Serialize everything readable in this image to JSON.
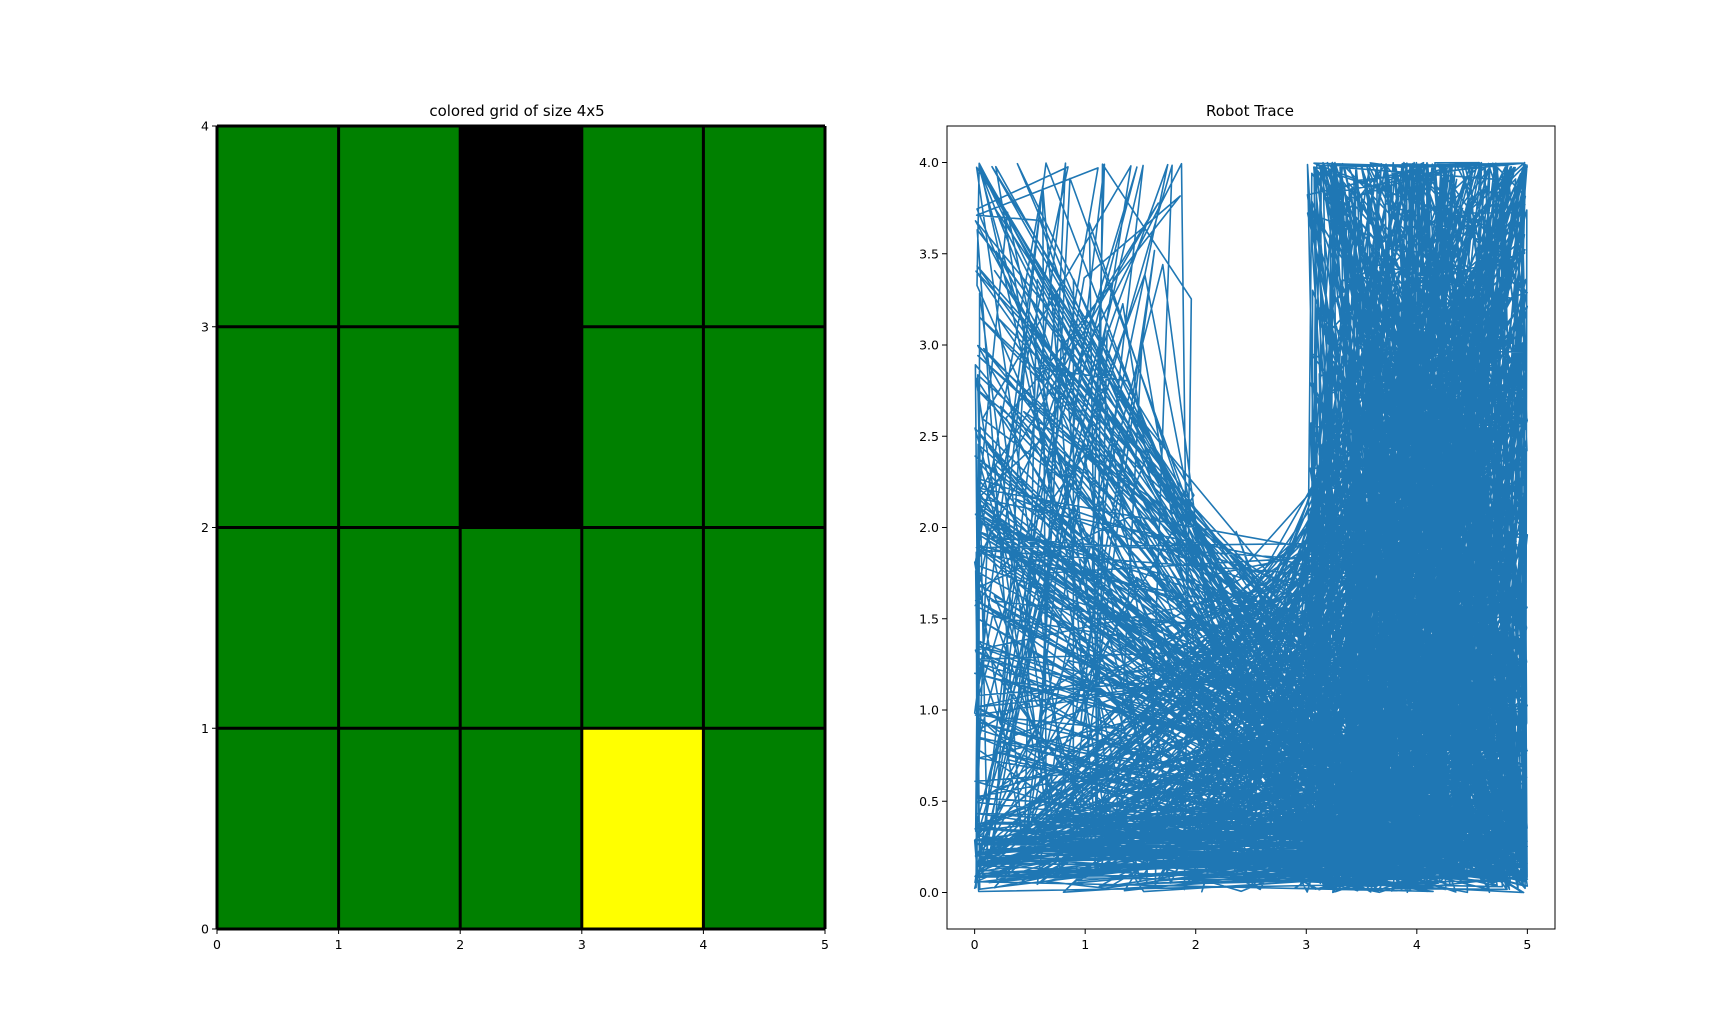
{
  "chart_data": [
    {
      "type": "heatmap",
      "title": "colored grid of size 4x5",
      "xlabel": "",
      "ylabel": "",
      "xlim": [
        0,
        5
      ],
      "ylim": [
        0,
        4
      ],
      "xticks": [
        "0",
        "1",
        "2",
        "3",
        "4",
        "5"
      ],
      "yticks": [
        "0",
        "1",
        "2",
        "3",
        "4"
      ],
      "grid": true,
      "rows_bottom_to_top": [
        [
          "green",
          "green",
          "green",
          "yellow",
          "green"
        ],
        [
          "green",
          "green",
          "green",
          "green",
          "green"
        ],
        [
          "green",
          "green",
          "black",
          "green",
          "green"
        ],
        [
          "green",
          "green",
          "black",
          "green",
          "green"
        ]
      ],
      "colors": {
        "green": "#008000",
        "black": "#000000",
        "yellow": "#ffff00"
      }
    },
    {
      "type": "line",
      "title": "Robot Trace",
      "xlabel": "",
      "ylabel": "",
      "xlim": [
        -0.25,
        5.25
      ],
      "ylim": [
        -0.2,
        4.2
      ],
      "xticks": [
        "0",
        "1",
        "2",
        "3",
        "4",
        "5"
      ],
      "yticks": [
        "0.0",
        "0.5",
        "1.0",
        "1.5",
        "2.0",
        "2.5",
        "3.0",
        "3.5",
        "4.0"
      ],
      "color": "#1f77b4",
      "series": [
        {
          "description_points_are_random_walk_within_region": true,
          "region_boundary": [
            [
              0,
              0
            ],
            [
              5,
              0
            ],
            [
              5,
              4
            ],
            [
              3,
              4
            ],
            [
              3,
              2
            ],
            [
              2,
              2
            ],
            [
              2,
              4
            ],
            [
              0,
              4
            ],
            [
              0,
              0
            ]
          ]
        }
      ]
    }
  ]
}
